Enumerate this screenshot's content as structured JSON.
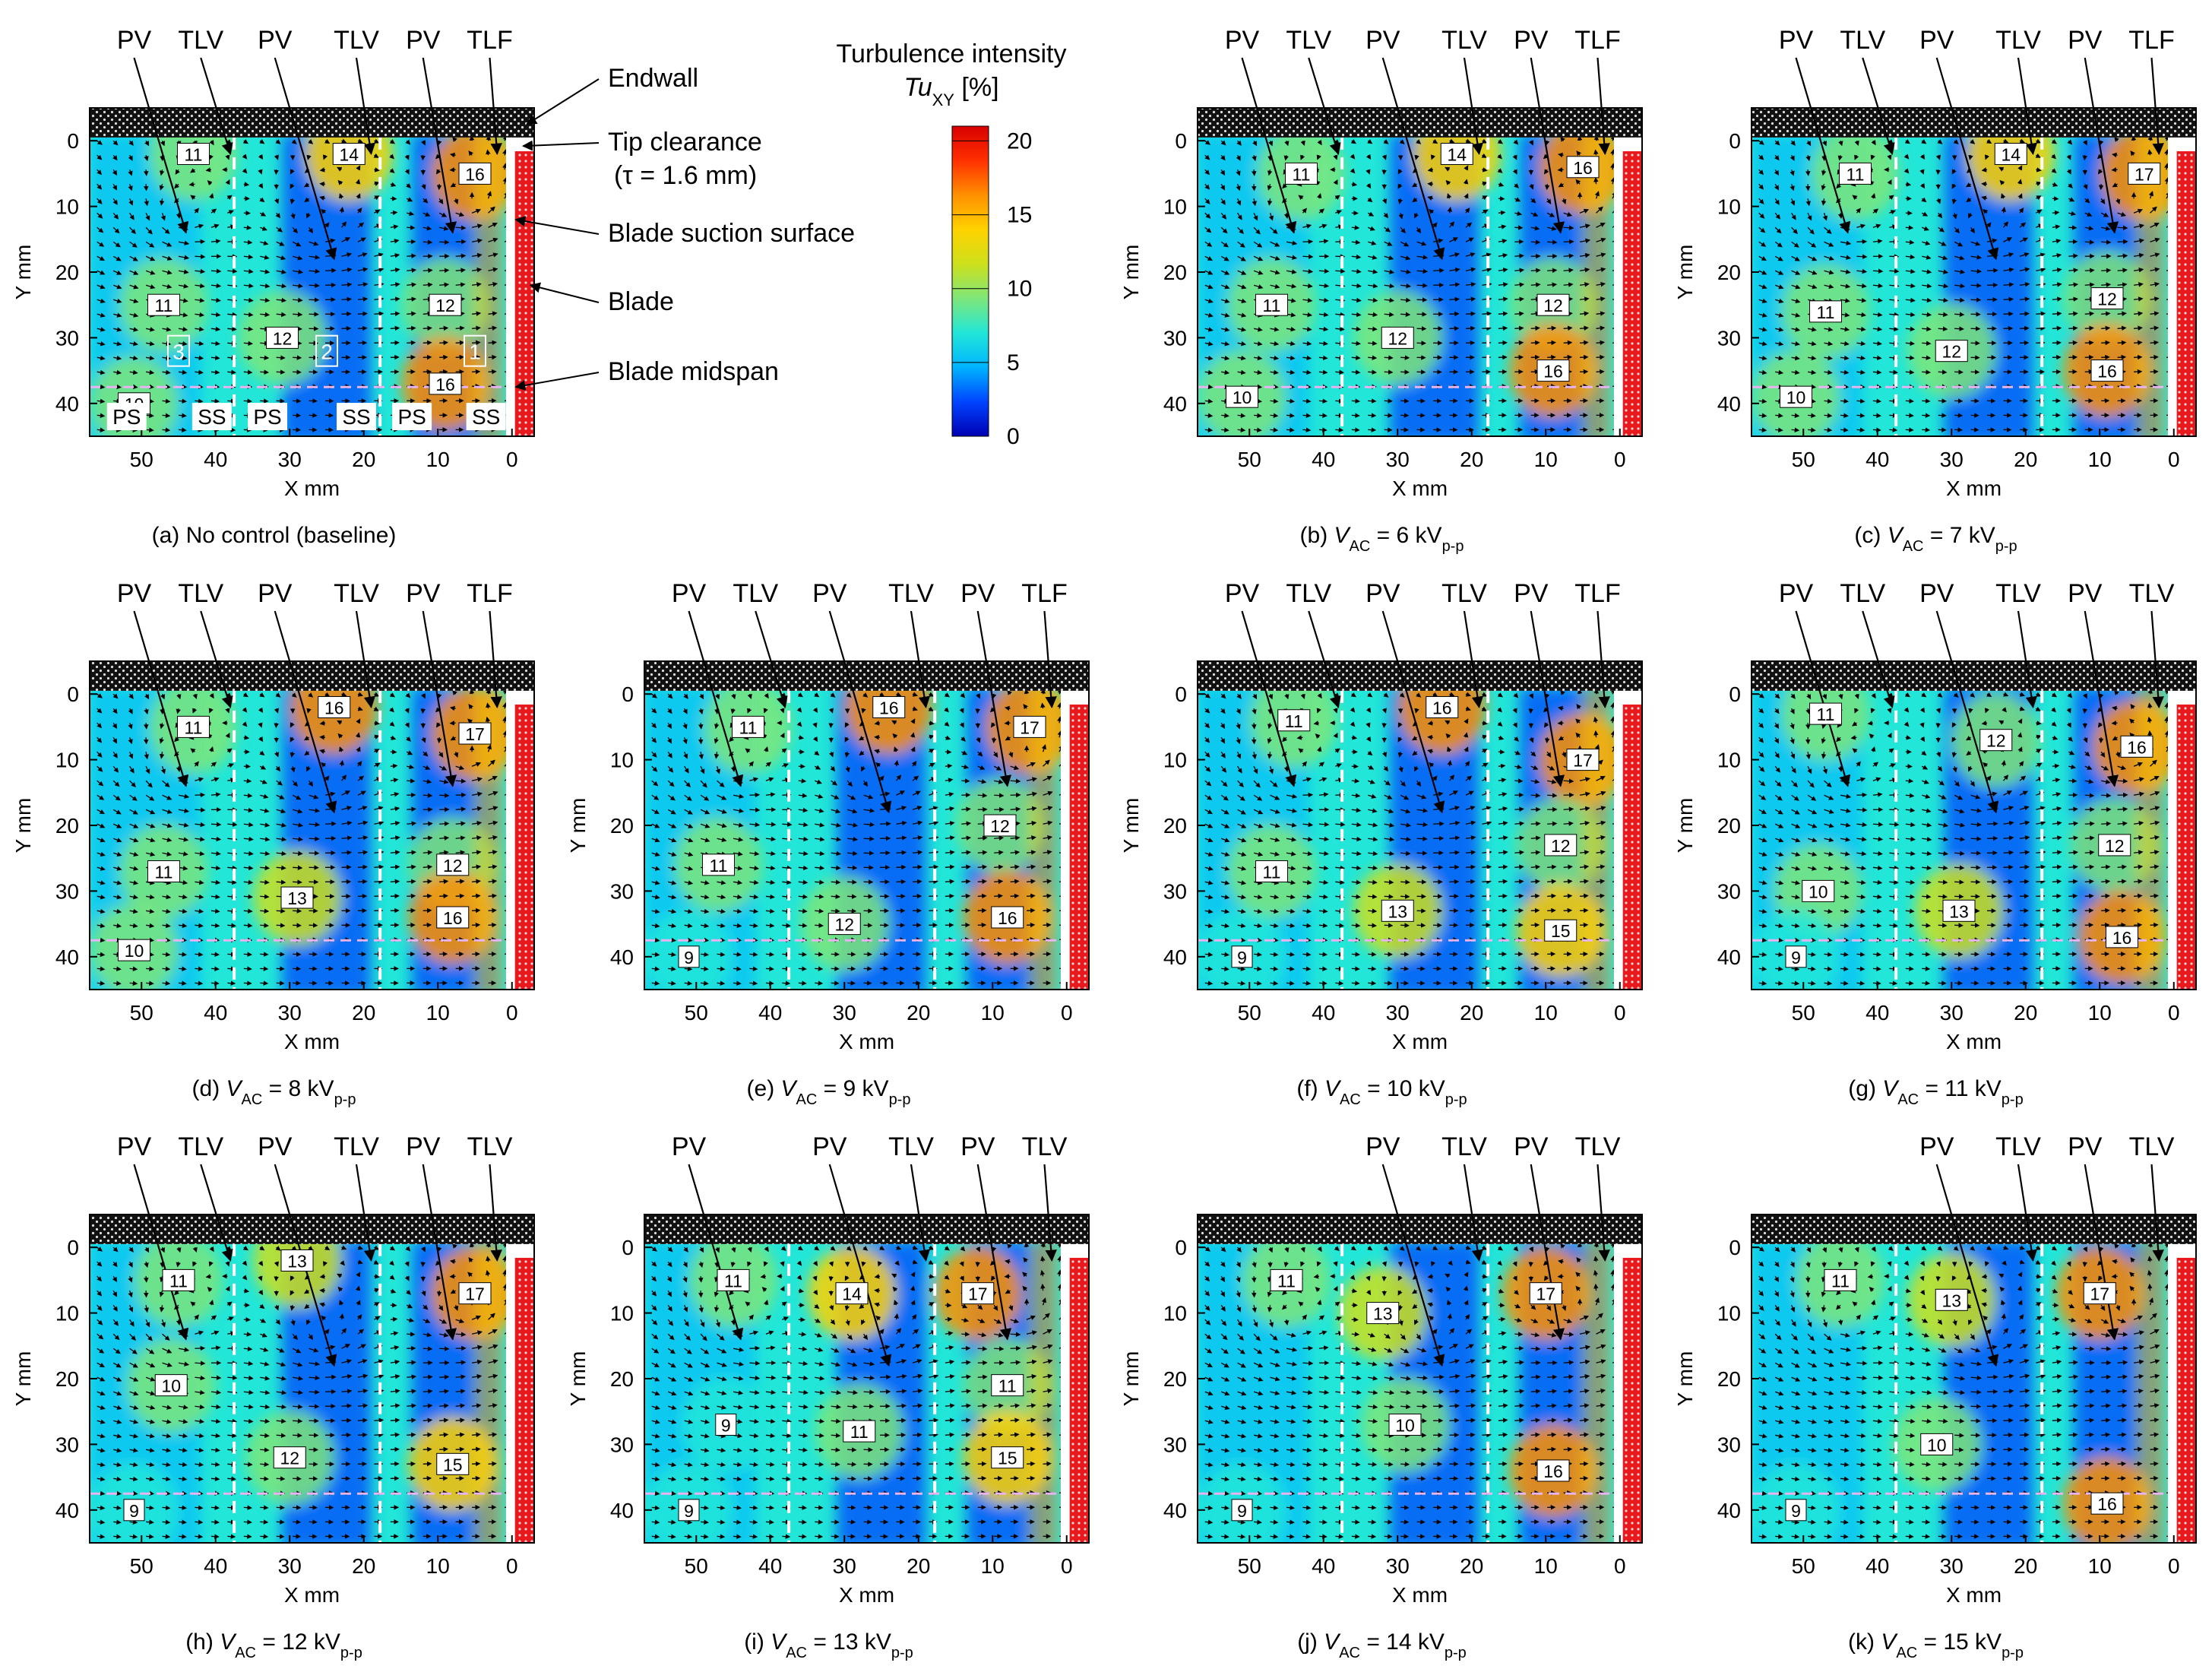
{
  "figure": {
    "colorbar": {
      "title_line1": "Turbulence intensity",
      "title_tu": "Tu",
      "title_sub": "XY",
      "title_unit": " [%]",
      "ticks": [
        0,
        5,
        10,
        15,
        20
      ],
      "range": [
        0,
        21
      ],
      "colors": [
        "#0000b4",
        "#0044ff",
        "#00b4ff",
        "#22e6d8",
        "#7ee67a",
        "#cde01c",
        "#ffd200",
        "#ff9000",
        "#ff3000",
        "#d80000"
      ]
    },
    "annotations": {
      "endwall": "Endwall",
      "tip_clearance": "Tip clearance",
      "tip_tau": "(τ = 1.6 mm)",
      "suction_surface": "Blade suction surface",
      "blade": "Blade",
      "midspan": "Blade midspan"
    },
    "axes_common": {
      "xlabel": "X mm",
      "ylabel": "Y mm",
      "xticks": [
        50,
        40,
        30,
        20,
        10,
        0
      ],
      "yticks": [
        0,
        10,
        20,
        30,
        40
      ],
      "xlim": [
        57,
        -3
      ],
      "ylim": [
        -5,
        45
      ]
    },
    "baseline_extras": {
      "passage_numbers": [
        "1",
        "2",
        "3"
      ],
      "side_labels": [
        "PS",
        "SS",
        "PS",
        "SS",
        "PS",
        "SS"
      ]
    }
  },
  "chart_data": [
    {
      "type": "heatmap",
      "panel": "(a)",
      "caption_text": "No control (baseline)",
      "vortex_labels": [
        "PV",
        "TLV",
        "PV",
        "TLV",
        "PV",
        "TLF"
      ],
      "value_labels": [
        {
          "x": 43,
          "y": 2,
          "text": "11"
        },
        {
          "x": 22,
          "y": 2,
          "text": "14"
        },
        {
          "x": 5,
          "y": 5,
          "text": "16"
        },
        {
          "x": 47,
          "y": 25,
          "text": "11"
        },
        {
          "x": 31,
          "y": 30,
          "text": "12"
        },
        {
          "x": 9,
          "y": 25,
          "text": "12"
        },
        {
          "x": 9,
          "y": 37,
          "text": "16"
        },
        {
          "x": 51,
          "y": 40,
          "text": "10"
        }
      ]
    },
    {
      "type": "heatmap",
      "panel": "(b)",
      "caption_prefix": "(b) ",
      "caption_vac": "6",
      "vortex_labels": [
        "PV",
        "TLV",
        "PV",
        "TLV",
        "PV",
        "TLF"
      ],
      "value_labels": [
        {
          "x": 43,
          "y": 5,
          "text": "11"
        },
        {
          "x": 22,
          "y": 2,
          "text": "14"
        },
        {
          "x": 5,
          "y": 4,
          "text": "16"
        },
        {
          "x": 47,
          "y": 25,
          "text": "11"
        },
        {
          "x": 30,
          "y": 30,
          "text": "12"
        },
        {
          "x": 9,
          "y": 25,
          "text": "12"
        },
        {
          "x": 9,
          "y": 35,
          "text": "16"
        },
        {
          "x": 51,
          "y": 39,
          "text": "10"
        }
      ]
    },
    {
      "type": "heatmap",
      "panel": "(c)",
      "caption_prefix": "(c) ",
      "caption_vac": "7",
      "vortex_labels": [
        "PV",
        "TLV",
        "PV",
        "TLV",
        "PV",
        "TLF"
      ],
      "value_labels": [
        {
          "x": 43,
          "y": 5,
          "text": "11"
        },
        {
          "x": 22,
          "y": 2,
          "text": "14"
        },
        {
          "x": 4,
          "y": 5,
          "text": "17"
        },
        {
          "x": 47,
          "y": 26,
          "text": "11"
        },
        {
          "x": 30,
          "y": 32,
          "text": "12"
        },
        {
          "x": 9,
          "y": 24,
          "text": "12"
        },
        {
          "x": 9,
          "y": 35,
          "text": "16"
        },
        {
          "x": 51,
          "y": 39,
          "text": "10"
        }
      ]
    },
    {
      "type": "heatmap",
      "panel": "(d)",
      "caption_prefix": "(d) ",
      "caption_vac": "8",
      "vortex_labels": [
        "PV",
        "TLV",
        "PV",
        "TLV",
        "PV",
        "TLF"
      ],
      "value_labels": [
        {
          "x": 43,
          "y": 5,
          "text": "11"
        },
        {
          "x": 24,
          "y": 2,
          "text": "16"
        },
        {
          "x": 5,
          "y": 6,
          "text": "17"
        },
        {
          "x": 47,
          "y": 27,
          "text": "11"
        },
        {
          "x": 29,
          "y": 31,
          "text": "13"
        },
        {
          "x": 8,
          "y": 26,
          "text": "12"
        },
        {
          "x": 8,
          "y": 34,
          "text": "16"
        },
        {
          "x": 51,
          "y": 39,
          "text": "10"
        }
      ]
    },
    {
      "type": "heatmap",
      "panel": "(e)",
      "caption_prefix": "(e) ",
      "caption_vac": "9",
      "vortex_labels": [
        "PV",
        "TLV",
        "PV",
        "TLV",
        "PV",
        "TLF"
      ],
      "value_labels": [
        {
          "x": 43,
          "y": 5,
          "text": "11"
        },
        {
          "x": 24,
          "y": 2,
          "text": "16"
        },
        {
          "x": 5,
          "y": 5,
          "text": "17"
        },
        {
          "x": 47,
          "y": 26,
          "text": "11"
        },
        {
          "x": 30,
          "y": 35,
          "text": "12"
        },
        {
          "x": 9,
          "y": 20,
          "text": "12"
        },
        {
          "x": 8,
          "y": 34,
          "text": "16"
        },
        {
          "x": 51,
          "y": 40,
          "text": "9"
        }
      ]
    },
    {
      "type": "heatmap",
      "panel": "(f)",
      "caption_prefix": "(f) ",
      "caption_vac": "10",
      "vortex_labels": [
        "PV",
        "TLV",
        "PV",
        "TLV",
        "PV",
        "TLF"
      ],
      "value_labels": [
        {
          "x": 44,
          "y": 4,
          "text": "11"
        },
        {
          "x": 24,
          "y": 2,
          "text": "16"
        },
        {
          "x": 5,
          "y": 10,
          "text": "17"
        },
        {
          "x": 47,
          "y": 27,
          "text": "11"
        },
        {
          "x": 30,
          "y": 33,
          "text": "13"
        },
        {
          "x": 8,
          "y": 23,
          "text": "12"
        },
        {
          "x": 8,
          "y": 36,
          "text": "15"
        },
        {
          "x": 51,
          "y": 40,
          "text": "9"
        }
      ]
    },
    {
      "type": "heatmap",
      "panel": "(g)",
      "caption_prefix": "(g) ",
      "caption_vac": "11",
      "vortex_labels": [
        "PV",
        "TLV",
        "PV",
        "TLV",
        "PV",
        "TLV"
      ],
      "value_labels": [
        {
          "x": 47,
          "y": 3,
          "text": "11"
        },
        {
          "x": 24,
          "y": 7,
          "text": "12"
        },
        {
          "x": 5,
          "y": 8,
          "text": "16"
        },
        {
          "x": 48,
          "y": 30,
          "text": "10"
        },
        {
          "x": 29,
          "y": 33,
          "text": "13"
        },
        {
          "x": 8,
          "y": 23,
          "text": "12"
        },
        {
          "x": 7,
          "y": 37,
          "text": "16"
        },
        {
          "x": 51,
          "y": 40,
          "text": "9"
        }
      ]
    },
    {
      "type": "heatmap",
      "panel": "(h)",
      "caption_prefix": "(h) ",
      "caption_vac": "12",
      "vortex_labels": [
        "PV",
        "TLV",
        "PV",
        "TLV",
        "PV",
        "TLV"
      ],
      "value_labels": [
        {
          "x": 45,
          "y": 5,
          "text": "11"
        },
        {
          "x": 29,
          "y": 2,
          "text": "13"
        },
        {
          "x": 5,
          "y": 7,
          "text": "17"
        },
        {
          "x": 46,
          "y": 21,
          "text": "10"
        },
        {
          "x": 30,
          "y": 32,
          "text": "12"
        },
        {
          "x": 8,
          "y": 33,
          "text": "15"
        },
        {
          "x": 51,
          "y": 40,
          "text": "9"
        }
      ]
    },
    {
      "type": "heatmap",
      "panel": "(i)",
      "caption_prefix": "(i) ",
      "caption_vac": "13",
      "vortex_labels": [
        "PV",
        "",
        "PV",
        "TLV",
        "PV",
        "TLV"
      ],
      "value_labels": [
        {
          "x": 45,
          "y": 5,
          "text": "11"
        },
        {
          "x": 29,
          "y": 7,
          "text": "14"
        },
        {
          "x": 12,
          "y": 7,
          "text": "17"
        },
        {
          "x": 46,
          "y": 27,
          "text": "9"
        },
        {
          "x": 28,
          "y": 28,
          "text": "11"
        },
        {
          "x": 8,
          "y": 21,
          "text": "11"
        },
        {
          "x": 8,
          "y": 32,
          "text": "15"
        },
        {
          "x": 51,
          "y": 40,
          "text": "9"
        }
      ]
    },
    {
      "type": "heatmap",
      "panel": "(j)",
      "caption_prefix": "(j) ",
      "caption_vac": "14",
      "vortex_labels": [
        "",
        "",
        "PV",
        "TLV",
        "PV",
        "TLV"
      ],
      "value_labels": [
        {
          "x": 45,
          "y": 5,
          "text": "11"
        },
        {
          "x": 32,
          "y": 10,
          "text": "13"
        },
        {
          "x": 10,
          "y": 7,
          "text": "17"
        },
        {
          "x": 29,
          "y": 27,
          "text": "10"
        },
        {
          "x": 9,
          "y": 34,
          "text": "16"
        },
        {
          "x": 51,
          "y": 40,
          "text": "9"
        }
      ]
    },
    {
      "type": "heatmap",
      "panel": "(k)",
      "caption_prefix": "(k) ",
      "caption_vac": "15",
      "vortex_labels": [
        "",
        "",
        "PV",
        "TLV",
        "PV",
        "TLV"
      ],
      "value_labels": [
        {
          "x": 45,
          "y": 5,
          "text": "11"
        },
        {
          "x": 30,
          "y": 8,
          "text": "13"
        },
        {
          "x": 10,
          "y": 7,
          "text": "17"
        },
        {
          "x": 32,
          "y": 30,
          "text": "10"
        },
        {
          "x": 9,
          "y": 39,
          "text": "16"
        },
        {
          "x": 51,
          "y": 40,
          "text": "9"
        }
      ]
    }
  ]
}
